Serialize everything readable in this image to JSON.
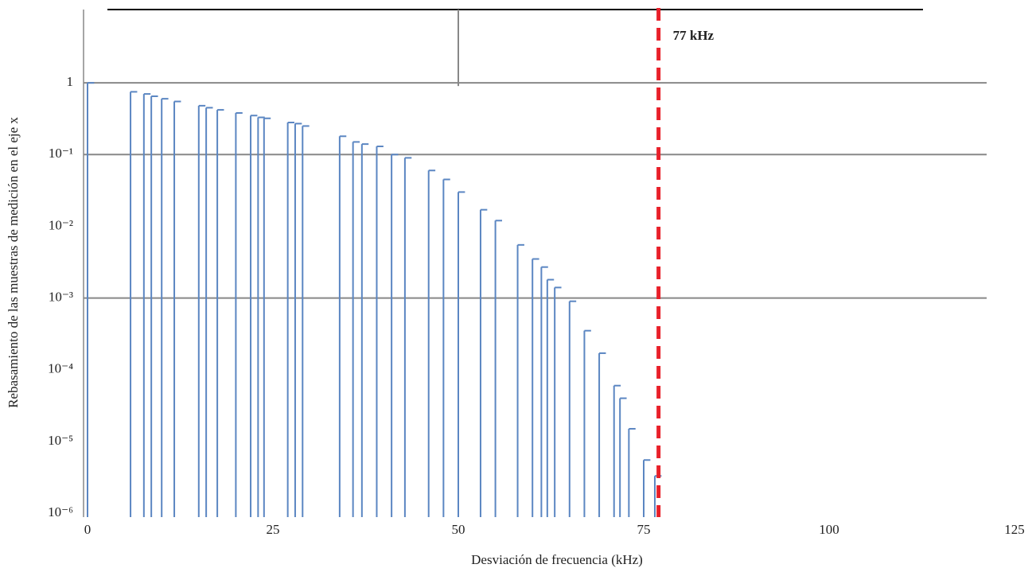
{
  "chart_data": {
    "type": "step-bars",
    "x_label": "Desviación de frecuencia (kHz)",
    "y_label": "Rebasamiento de las muestras de medición en el eje x",
    "log_y": true,
    "color": "#5b86c2",
    "x": [
      0,
      5.8,
      7.6,
      8.6,
      10,
      11.7,
      15,
      16,
      17.5,
      20,
      22,
      23,
      23.8,
      27,
      28,
      29,
      34,
      35.8,
      37,
      39,
      41,
      42.8,
      46,
      48,
      50,
      53,
      55,
      58,
      60,
      61.2,
      62,
      63,
      65,
      67,
      69,
      71,
      71.8,
      73,
      75,
      76.5
    ],
    "values": [
      1,
      0.75,
      0.7,
      0.65,
      0.6,
      0.55,
      0.48,
      0.45,
      0.42,
      0.38,
      0.35,
      0.33,
      0.32,
      0.28,
      0.27,
      0.25,
      0.18,
      0.15,
      0.14,
      0.13,
      0.1,
      0.09,
      0.06,
      0.045,
      0.03,
      0.017,
      0.012,
      0.0055,
      0.0035,
      0.0027,
      0.0018,
      0.0014,
      0.0009,
      0.00035,
      0.00017,
      6e-05,
      4e-05,
      1.5e-05,
      5.5e-06,
      3.3e-06
    ],
    "xlim": [
      0,
      125
    ],
    "ylim": [
      1e-06,
      10
    ],
    "xticks": [
      0,
      25,
      50,
      75,
      100,
      125
    ],
    "yticks": [
      {
        "value": 1,
        "label": "1"
      },
      {
        "value": 0.1,
        "label": "10⁻¹"
      },
      {
        "value": 0.01,
        "label": "10⁻²"
      },
      {
        "value": 0.001,
        "label": "10⁻³"
      },
      {
        "value": 0.0001,
        "label": "10⁻⁴"
      },
      {
        "value": 1e-05,
        "label": "10⁻⁵"
      },
      {
        "value": 1e-06,
        "label": "10⁻⁶"
      }
    ],
    "grid_y": [
      1,
      0.1,
      0.001
    ],
    "grid_x": [
      50
    ],
    "marker": {
      "x": 77,
      "label": "77 kHz",
      "color": "#e8202a"
    }
  }
}
